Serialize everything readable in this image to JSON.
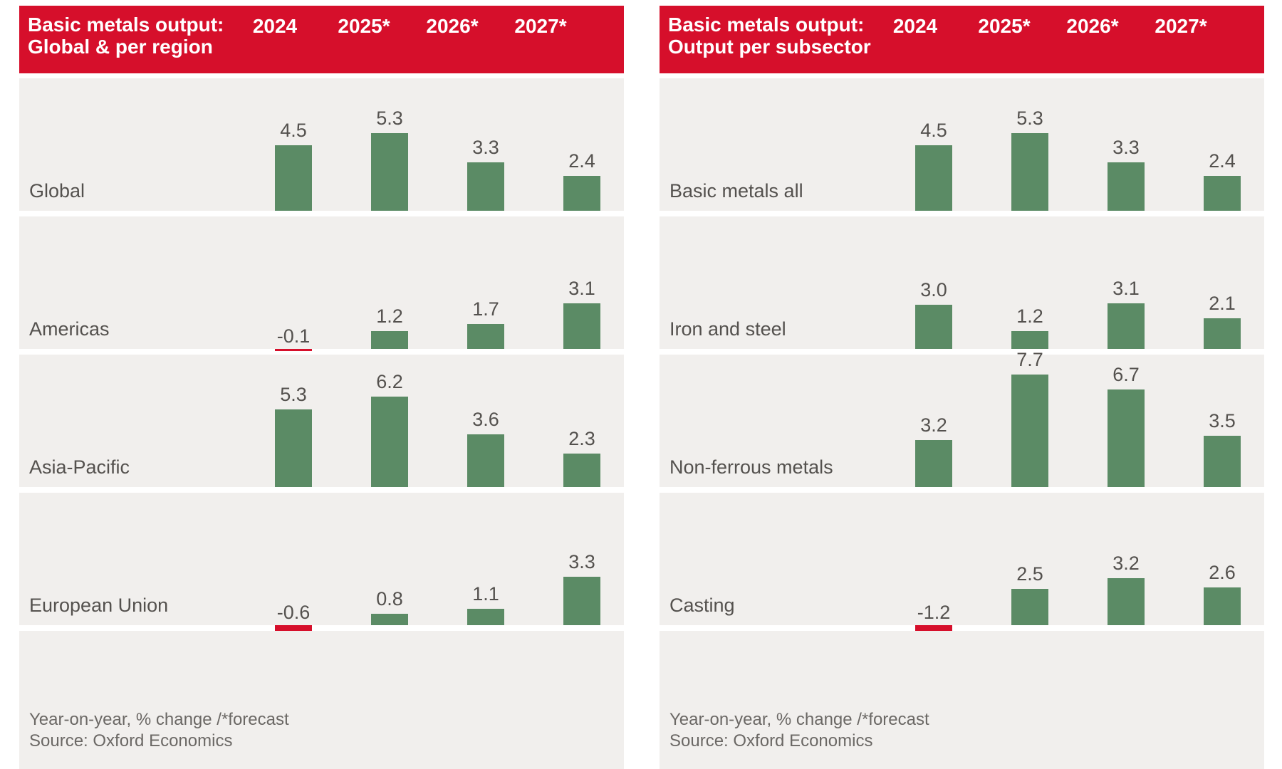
{
  "colors": {
    "accent_red": "#d60f2b",
    "bar_green": "#5b8b65",
    "bar_negative_red": "#d60f2b",
    "band_bg": "#f1efed",
    "header_text": "#ffffff",
    "label_text": "#54514e",
    "footnote_text": "#6b6865"
  },
  "footnote": {
    "line1": "Year-on-year, % change /*forecast",
    "line2": "Source: Oxford Economics"
  },
  "chart_data": [
    {
      "type": "bar",
      "title_line1": "Basic metals output:",
      "title_line2": "Global & per region",
      "categories": [
        "2024",
        "2025*",
        "2026*",
        "2027*"
      ],
      "series": [
        {
          "name": "Global",
          "values": [
            4.5,
            5.3,
            3.3,
            2.4
          ]
        },
        {
          "name": "Americas",
          "values": [
            -0.1,
            1.2,
            1.7,
            3.1
          ]
        },
        {
          "name": "Asia-Pacific",
          "values": [
            5.3,
            6.2,
            3.6,
            2.3
          ]
        },
        {
          "name": "European Union",
          "values": [
            -0.6,
            0.8,
            1.1,
            3.3
          ]
        }
      ],
      "ylabel": "Year-on-year % change",
      "ylim": [
        -1.5,
        8
      ],
      "grid": false,
      "legend": "none",
      "negative_bar_color": "red",
      "positive_bar_color": "green"
    },
    {
      "type": "bar",
      "title_line1": "Basic metals output:",
      "title_line2": "Output per subsector",
      "categories": [
        "2024",
        "2025*",
        "2026*",
        "2027*"
      ],
      "series": [
        {
          "name": "Basic metals all",
          "values": [
            4.5,
            5.3,
            3.3,
            2.4
          ]
        },
        {
          "name": "Iron and steel",
          "values": [
            3.0,
            1.2,
            3.1,
            2.1
          ]
        },
        {
          "name": "Non-ferrous metals",
          "values": [
            3.2,
            7.7,
            6.7,
            3.5
          ]
        },
        {
          "name": "Casting",
          "values": [
            -1.2,
            2.5,
            3.2,
            2.6
          ]
        }
      ],
      "ylabel": "Year-on-year % change",
      "ylim": [
        -1.5,
        8
      ],
      "grid": false,
      "legend": "none",
      "negative_bar_color": "red",
      "positive_bar_color": "green"
    }
  ]
}
